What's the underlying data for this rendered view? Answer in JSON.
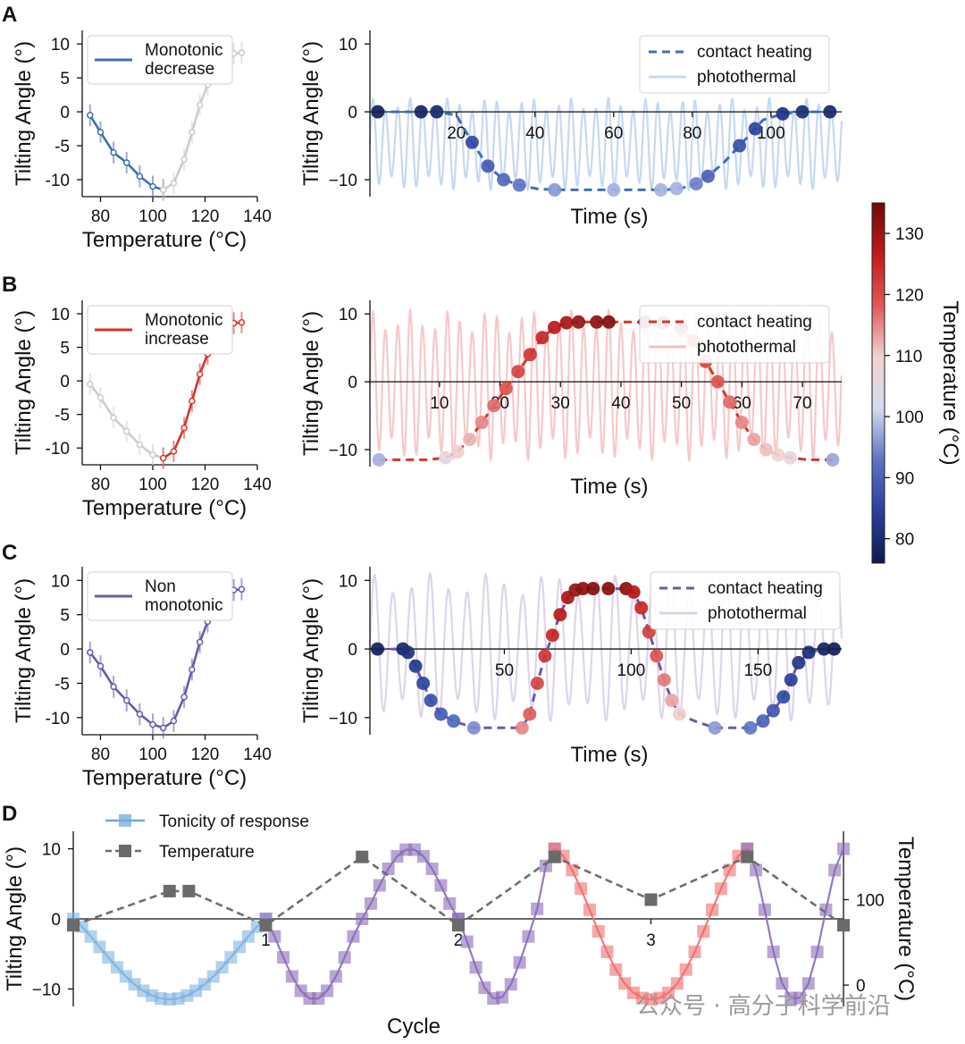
{
  "panel_labels": [
    "A",
    "B",
    "C",
    "D"
  ],
  "colorbar": {
    "label": "Temperature (°C)",
    "range": [
      76,
      135
    ],
    "ticks": [
      "80",
      "90",
      "100",
      "110",
      "120",
      "130"
    ],
    "colors": [
      "#0e1a4d",
      "#2a3f9e",
      "#5c73c4",
      "#d6daf0",
      "#f0d3d3",
      "#e05a5a",
      "#c11a1a",
      "#6e0a0a"
    ]
  },
  "watermark": "公众号 · 高分子科学前沿",
  "chart_data": [
    {
      "id": "A-left",
      "type": "line",
      "xlabel": "Temperature (°C)",
      "ylabel": "Tilting Angle (°)",
      "xlim": [
        73,
        140
      ],
      "ylim": [
        -12.5,
        12
      ],
      "xticks": [
        "80",
        "100",
        "120",
        "140"
      ],
      "yticks": [
        "10",
        "5",
        "0",
        "-5",
        "-10"
      ],
      "legend": {
        "label": "Monotonic\ndecrease",
        "color": "#3f6fb5"
      },
      "series": [
        {
          "name": "Monotonic decrease",
          "color": "#3f6fb5",
          "x": [
            76,
            80,
            85,
            90,
            95,
            100,
            104
          ],
          "y": [
            -0.5,
            -3,
            -6,
            -7.5,
            -9.5,
            -11,
            -11.5
          ]
        },
        {
          "name": "",
          "color": "#cccccc",
          "x": [
            104,
            108,
            112,
            115,
            118,
            121,
            124,
            127,
            131,
            134
          ],
          "y": [
            -11.5,
            -10.5,
            -7,
            -3,
            1,
            4,
            7,
            8.5,
            8.6,
            8.7
          ]
        }
      ]
    },
    {
      "id": "A-right",
      "type": "line",
      "xlabel": "Time (s)",
      "ylabel": "Tilting Angle (°)",
      "xlim": [
        -2,
        118
      ],
      "ylim": [
        -12.5,
        12
      ],
      "xticks": [
        "20",
        "40",
        "60",
        "80",
        "100"
      ],
      "yticks": [
        "10",
        "0",
        "−10"
      ],
      "legend": [
        {
          "label": "contact heating",
          "color": "#3f6fb5"
        },
        {
          "label": "photothermal",
          "color": "#c9daf0"
        }
      ],
      "photothermal": {
        "color": "#bcd2ee",
        "period": 3.15,
        "max": 2,
        "min": -11.5
      },
      "series": [
        {
          "name": "contact heating",
          "color": "#3f6fb5",
          "x": [
            0,
            11,
            15,
            20,
            24,
            28,
            32,
            36,
            41,
            47,
            52,
            58,
            63,
            65,
            69,
            73,
            77,
            81,
            84,
            88,
            92,
            96,
            98,
            103,
            108,
            113,
            115
          ],
          "y": [
            0,
            0,
            0,
            -0.5,
            -4.5,
            -8,
            -10,
            -10.8,
            -11.4,
            -11.5,
            -11.5,
            -11.5,
            -11.5,
            -11.5,
            -11.5,
            -11.5,
            -11.3,
            -10.6,
            -9.5,
            -7.5,
            -5,
            -2.5,
            -1.2,
            -0.3,
            0,
            0,
            0
          ]
        },
        {
          "name": "",
          "color": "",
          "x": [
            0,
            11,
            15,
            24,
            28,
            32,
            36,
            45,
            60,
            72,
            76,
            81,
            84,
            92,
            96,
            103,
            108,
            115
          ],
          "y": [
            0,
            0,
            0,
            -4.5,
            -8,
            -10,
            -10.8,
            -11.5,
            -11.5,
            -11.5,
            -11.3,
            -10.6,
            -9.5,
            -5,
            -2.5,
            -0.3,
            0,
            0
          ],
          "temps": [
            77,
            78,
            79,
            86,
            89,
            91,
            93,
            96,
            98,
            94,
            90,
            87,
            85,
            82,
            80,
            79,
            78,
            77
          ]
        }
      ]
    },
    {
      "id": "B-left",
      "type": "line",
      "xlabel": "Temperature (°C)",
      "ylabel": "Tilting Angle (°)",
      "xlim": [
        73,
        140
      ],
      "ylim": [
        -12.5,
        12
      ],
      "xticks": [
        "80",
        "100",
        "120",
        "140"
      ],
      "yticks": [
        "10",
        "5",
        "0",
        "-5",
        "-10"
      ],
      "legend": {
        "label": "Monotonic\nincrease",
        "color": "#d9332b"
      },
      "series": [
        {
          "name": "",
          "color": "#cccccc",
          "x": [
            76,
            80,
            85,
            90,
            95,
            100,
            104
          ],
          "y": [
            -0.5,
            -2.5,
            -5.5,
            -7.5,
            -9.5,
            -11,
            -11.5
          ]
        },
        {
          "name": "Monotonic increase",
          "color": "#d9332b",
          "x": [
            104,
            108,
            112,
            115,
            118,
            121,
            124,
            127,
            131,
            134
          ],
          "y": [
            -11.5,
            -10.5,
            -7,
            -3,
            1,
            4,
            7,
            8.5,
            8.6,
            8.7
          ]
        }
      ]
    },
    {
      "id": "B-right",
      "type": "line",
      "xlabel": "Time (s)",
      "ylabel": "Tilting Angle (°)",
      "xlim": [
        -1.5,
        76.5
      ],
      "ylim": [
        -12.5,
        12
      ],
      "xticks": [
        "10",
        "20",
        "30",
        "40",
        "50",
        "60",
        "70"
      ],
      "yticks": [
        "10",
        "0",
        "−10"
      ],
      "legend": [
        {
          "label": "contact heating",
          "color": "#d9332b"
        },
        {
          "label": "photothermal",
          "color": "#f3c1c1"
        }
      ],
      "photothermal": {
        "color": "#f5bfbf",
        "period": 2.05,
        "max": 10.5,
        "min": -11.5
      },
      "series": [
        {
          "name": "contact heating",
          "color": "#d9332b",
          "x": [
            0,
            8,
            11,
            13,
            15,
            17,
            19,
            21,
            23,
            25,
            27,
            29,
            31,
            33,
            36,
            38,
            44,
            47,
            50,
            52,
            54,
            56,
            58,
            60,
            62,
            64,
            66,
            68,
            71,
            73,
            75
          ],
          "y": [
            -11.5,
            -11.5,
            -11.2,
            -10.3,
            -8.5,
            -6,
            -3.5,
            -1,
            1.5,
            4,
            6.5,
            8,
            8.7,
            8.8,
            8.8,
            8.8,
            8.8,
            8.7,
            8,
            6,
            3,
            0,
            -3,
            -6,
            -8.5,
            -10,
            -10.8,
            -11.2,
            -11.5,
            -11.5,
            -11.5
          ],
          "temps": []
        },
        {
          "name": "",
          "color": "",
          "x": [
            0,
            11,
            13,
            15,
            17,
            19,
            21,
            23,
            25,
            27,
            29,
            31,
            33,
            36,
            38,
            44,
            47,
            50,
            52,
            54,
            56,
            58,
            60,
            62,
            64,
            66,
            68,
            75
          ],
          "y": [
            -11.5,
            -11.2,
            -10.3,
            -8.5,
            -6,
            -3.5,
            -1,
            1.5,
            4,
            6.5,
            8,
            8.7,
            8.8,
            8.8,
            8.8,
            8.8,
            8.7,
            8,
            6,
            3,
            0,
            -3,
            -6,
            -8.5,
            -10,
            -10.8,
            -11.2,
            -11.5
          ],
          "temps": [
            98,
            106,
            110,
            112,
            115,
            117,
            119,
            121,
            123,
            125,
            127,
            129,
            131,
            132,
            133,
            133,
            132,
            128,
            124,
            121,
            119,
            117,
            115,
            113,
            111,
            109,
            107,
            97
          ]
        }
      ]
    },
    {
      "id": "C-left",
      "type": "line",
      "xlabel": "Temperature (°C)",
      "ylabel": "Tilting Angle (°)",
      "xlim": [
        73,
        140
      ],
      "ylim": [
        -12.5,
        12
      ],
      "xticks": [
        "80",
        "100",
        "120",
        "140"
      ],
      "yticks": [
        "10",
        "5",
        "0",
        "-5",
        "-10"
      ],
      "legend": {
        "label": "Non\nmonotonic",
        "color": "#6a5aaa"
      },
      "series": [
        {
          "name": "Non monotonic",
          "color": "#6a5aaa",
          "x": [
            76,
            80,
            85,
            90,
            95,
            100,
            104,
            108,
            112,
            115,
            118,
            121,
            124,
            127,
            131,
            134
          ],
          "y": [
            -0.5,
            -2.5,
            -5.5,
            -7.5,
            -9.5,
            -11,
            -11.5,
            -10.5,
            -7,
            -3,
            1,
            4,
            7,
            8.5,
            8.6,
            8.7
          ]
        }
      ]
    },
    {
      "id": "C-right",
      "type": "line",
      "xlabel": "Time (s)",
      "ylabel": "Tilting Angle (°)",
      "xlim": [
        -3,
        183
      ],
      "ylim": [
        -12.5,
        12
      ],
      "xticks": [
        "50",
        "100",
        "150"
      ],
      "yticks": [
        "10",
        "0",
        "−10"
      ],
      "legend": [
        {
          "label": "contact heating",
          "color": "#6a5aaa"
        },
        {
          "label": "photothermal",
          "color": "#dcd2e8"
        }
      ],
      "photothermal": {
        "color": "#d9cde6",
        "period": 7.3,
        "max": 11,
        "min": -10.5
      },
      "series": [
        {
          "name": "contact heating",
          "color": "#6a5aaa",
          "x": [
            0,
            10,
            12,
            15,
            18,
            21,
            25,
            30,
            38,
            48,
            57,
            60,
            63,
            66,
            69,
            72,
            75,
            78,
            81,
            85,
            91,
            98,
            101,
            104,
            107,
            110,
            113,
            116,
            119,
            125,
            133,
            141,
            147,
            152,
            156,
            160,
            163,
            166,
            170,
            176,
            180
          ],
          "y": [
            0,
            0,
            -0.5,
            -2.5,
            -5,
            -7.5,
            -9.5,
            -10.5,
            -11.5,
            -11.5,
            -11.5,
            -9.5,
            -5,
            -1,
            2,
            5,
            7.5,
            8.6,
            8.8,
            8.8,
            8.8,
            8.8,
            8.3,
            6,
            2.5,
            -1,
            -4.5,
            -7.5,
            -9.5,
            -10.5,
            -11.5,
            -11.5,
            -11.5,
            -10.5,
            -9,
            -7,
            -4.5,
            -2,
            -0.5,
            0,
            0
          ]
        },
        {
          "name": "",
          "color": "",
          "x": [
            0,
            10,
            12,
            15,
            18,
            21,
            25,
            30,
            38,
            57,
            60,
            63,
            66,
            69,
            72,
            75,
            78,
            81,
            85,
            91,
            98,
            101,
            104,
            107,
            110,
            113,
            116,
            119,
            133,
            147,
            152,
            156,
            160,
            163,
            166,
            170,
            176,
            180
          ],
          "y": [
            0,
            0,
            -0.5,
            -2.5,
            -5,
            -7.5,
            -9.5,
            -10.5,
            -11.5,
            -11.5,
            -9.5,
            -5,
            -1,
            2,
            5,
            7.5,
            8.6,
            8.8,
            8.8,
            8.8,
            8.8,
            8.3,
            6,
            2.5,
            -1,
            -4.5,
            -7.5,
            -9.5,
            -11.5,
            -11.5,
            -10.5,
            -9,
            -7,
            -4.5,
            -2,
            -0.5,
            0,
            0
          ],
          "temps": [
            77,
            79,
            81,
            83,
            85,
            87,
            89,
            91,
            95,
            115,
            118,
            121,
            123,
            125,
            127,
            129,
            131,
            132,
            133,
            133,
            132,
            128,
            125,
            122,
            119,
            116,
            113,
            110,
            96,
            93,
            90,
            88,
            86,
            84,
            82,
            80,
            78,
            77
          ]
        }
      ]
    },
    {
      "id": "D",
      "type": "line",
      "xlabel": "Cycle",
      "ylabel": "Tilting Angle (°)",
      "y2label": "Temperature (°C)",
      "xlim": [
        0,
        4
      ],
      "ylim": [
        -12.5,
        12.5
      ],
      "y2lim": [
        -25,
        180
      ],
      "xticks": [
        "1",
        "2",
        "3"
      ],
      "yticks": [
        "10",
        "0",
        "−10"
      ],
      "y2ticks": [
        "100",
        "0"
      ],
      "legend": [
        {
          "label": "Tonicity of response",
          "color": "#74a9dc"
        },
        {
          "label": "Temperature",
          "color": "#555555"
        }
      ],
      "series": [
        {
          "name": "Temperature",
          "color": "#6b6b6b",
          "x": [
            0,
            0.5,
            0.6,
            1,
            1.5,
            2,
            2.5,
            3,
            3.5,
            4
          ],
          "y": [
            70,
            110,
            110,
            70,
            150,
            70,
            150,
            100,
            150,
            70
          ]
        }
      ],
      "tonicity_segments": [
        {
          "color": "#7fb2e0",
          "x0": 0,
          "x1": 1,
          "shape": "dip"
        },
        {
          "color": "#8a6bb8",
          "x0": 1,
          "x1": 2,
          "shape": "dip-peak"
        },
        {
          "color": "#8a6bb8",
          "x0": 2,
          "x1": 2.5,
          "shape": "dip-rise"
        },
        {
          "color": "#ee6e6e",
          "x0": 2.5,
          "x1": 3.5,
          "shape": "fall-dip-rise"
        },
        {
          "color": "#8a6bb8",
          "x0": 3.5,
          "x1": 4,
          "shape": "fall-dip-rise"
        }
      ]
    }
  ]
}
